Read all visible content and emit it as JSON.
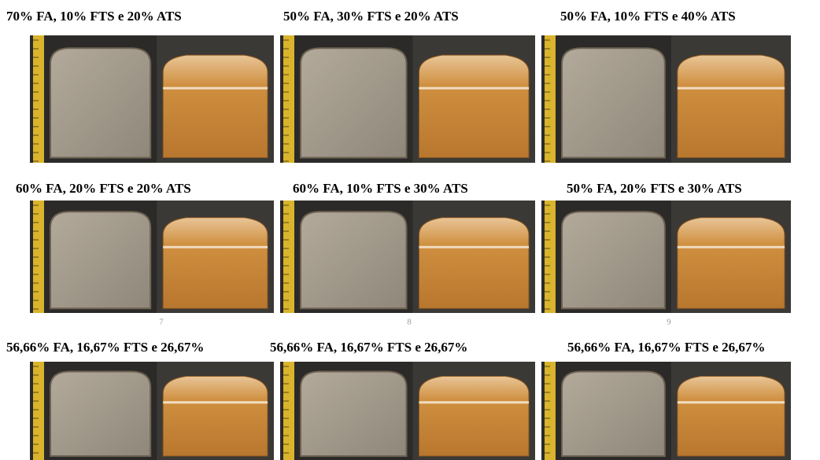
{
  "panels": [
    {
      "caption": "70% FA, 10% FTS e 20% ATS"
    },
    {
      "caption": "50% FA, 30% FTS e 20% ATS"
    },
    {
      "caption": "50% FA, 10% FTS e 40% ATS"
    },
    {
      "caption": "60% FA, 20% FTS e 20% ATS"
    },
    {
      "caption": "60% FA, 10% FTS e 30% ATS"
    },
    {
      "caption": "50% FA, 20% FTS e 30% ATS"
    },
    {
      "caption": "56,66% FA, 16,67% FTS e 26,67%"
    },
    {
      "caption": "56,66% FA, 16,67% FTS e 26,67%"
    },
    {
      "caption": "56,66% FA, 16,67% FTS e 26,67%"
    }
  ],
  "sample_numbers": [
    "7",
    "8",
    "9"
  ]
}
